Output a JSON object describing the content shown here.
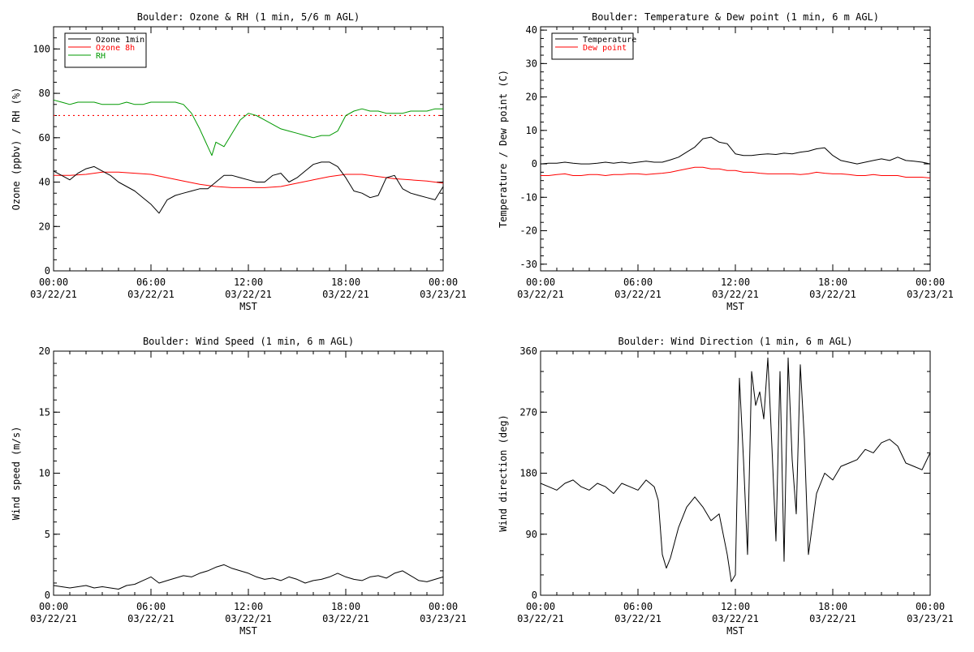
{
  "x_axis": {
    "label": "MST",
    "ticks": [
      {
        "hours": 0,
        "time": "00:00",
        "date": "03/22/21"
      },
      {
        "hours": 6,
        "time": "06:00",
        "date": "03/22/21"
      },
      {
        "hours": 12,
        "time": "12:00",
        "date": "03/22/21"
      },
      {
        "hours": 18,
        "time": "18:00",
        "date": "03/22/21"
      },
      {
        "hours": 24,
        "time": "00:00",
        "date": "03/23/21"
      }
    ],
    "range_hours": [
      0,
      24
    ],
    "minor_step_hours": 1
  },
  "chart_data": [
    {
      "id": "ozone-rh",
      "type": "line",
      "title": "Boulder: Ozone & RH (1 min, 5/6 m AGL)",
      "xlabel": "MST",
      "ylabel": "Ozone (ppbv) / RH (%)",
      "ylim": [
        0,
        110
      ],
      "yticks": [
        0,
        20,
        40,
        60,
        80,
        100
      ],
      "legend": "top-left",
      "series": [
        {
          "name": "Ozone 1min",
          "color": "#000000",
          "x": [
            0,
            0.5,
            1,
            1.5,
            2,
            2.5,
            3,
            3.5,
            4,
            4.5,
            5,
            5.5,
            6,
            6.5,
            7,
            7.5,
            8,
            8.5,
            9,
            9.5,
            10,
            10.5,
            11,
            11.5,
            12,
            12.5,
            13,
            13.5,
            14,
            14.5,
            15,
            15.5,
            16,
            16.5,
            17,
            17.5,
            18,
            18.5,
            19,
            19.5,
            20,
            20.5,
            21,
            21.5,
            22,
            22.5,
            23,
            23.5,
            24
          ],
          "y": [
            45,
            43,
            41,
            44,
            46,
            47,
            45,
            43,
            40,
            38,
            36,
            33,
            30,
            26,
            32,
            34,
            35,
            36,
            37,
            37,
            40,
            43,
            43,
            42,
            41,
            40,
            40,
            43,
            44,
            40,
            42,
            45,
            48,
            49,
            49,
            47,
            42,
            36,
            35,
            33,
            34,
            42,
            43,
            37,
            35,
            34,
            33,
            32,
            38
          ]
        },
        {
          "name": "Ozone 8h",
          "color": "#ff0000",
          "x": [
            0,
            1,
            2,
            3,
            4,
            5,
            6,
            7,
            8,
            9,
            10,
            11,
            12,
            13,
            14,
            15,
            16,
            17,
            18,
            19,
            20,
            21,
            22,
            23,
            24
          ],
          "y": [
            43,
            43,
            43.5,
            44.5,
            44.5,
            44,
            43.5,
            42,
            40.5,
            39,
            38,
            37.5,
            37.5,
            37.5,
            38,
            39.5,
            41,
            42.5,
            43.5,
            43.5,
            42.5,
            41.5,
            41,
            40.5,
            39.5
          ]
        },
        {
          "name": "RH",
          "color": "#009900",
          "x": [
            0,
            0.5,
            1,
            1.5,
            2,
            2.5,
            3,
            3.5,
            4,
            4.5,
            5,
            5.5,
            6,
            6.5,
            7,
            7.5,
            8,
            8,
            8.5,
            9,
            9.5,
            9.75,
            10,
            10.5,
            11,
            11.5,
            12,
            12.5,
            13,
            13.5,
            14,
            14.5,
            15,
            15.5,
            16,
            16.5,
            17,
            17.5,
            18,
            18.5,
            19,
            19.5,
            20,
            20.5,
            21,
            21.5,
            22,
            22.5,
            23,
            23.5,
            24
          ],
          "y": [
            77,
            76,
            75,
            76,
            76,
            76,
            75,
            75,
            75,
            76,
            75,
            75,
            76,
            76,
            76,
            76,
            75,
            75,
            71,
            64,
            56,
            52,
            58,
            56,
            62,
            68,
            71,
            70,
            68,
            66,
            64,
            63,
            62,
            61,
            60,
            61,
            61,
            63,
            70,
            72,
            73,
            72,
            72,
            71,
            71,
            71,
            72,
            72,
            72,
            73,
            73
          ]
        }
      ],
      "reference_lines": [
        {
          "name": "Ozone 8h standard",
          "value": 70,
          "color": "#ff0000",
          "style": "dotted"
        }
      ]
    },
    {
      "id": "temp-dew",
      "type": "line",
      "title": "Boulder: Temperature & Dew point (1 min, 6 m AGL)",
      "xlabel": "MST",
      "ylabel": "Temperature / Dew point (C)",
      "ylim": [
        -32,
        41
      ],
      "yticks": [
        -30,
        -20,
        -10,
        0,
        10,
        20,
        30,
        40
      ],
      "legend": "top-left",
      "series": [
        {
          "name": "Temperature",
          "color": "#000000",
          "x": [
            0,
            0.5,
            1,
            1.5,
            2,
            2.5,
            3,
            3.5,
            4,
            4.5,
            5,
            5.5,
            6,
            6.5,
            7,
            7.5,
            8,
            8.5,
            9,
            9.5,
            10,
            10.5,
            11,
            11.5,
            12,
            12.5,
            13,
            13.5,
            14,
            14.5,
            15,
            15.5,
            16,
            16.5,
            17,
            17.5,
            18,
            18.5,
            19,
            19.5,
            20,
            20.5,
            21,
            21.5,
            22,
            22.5,
            23,
            23.5,
            24
          ],
          "y": [
            0,
            0.2,
            0.2,
            0.5,
            0.2,
            0,
            0,
            0.2,
            0.5,
            0.2,
            0.5,
            0.2,
            0.5,
            0.8,
            0.5,
            0.5,
            1.2,
            2,
            3.5,
            5,
            7.5,
            8,
            6.5,
            6,
            3,
            2.5,
            2.5,
            2.8,
            3,
            2.8,
            3.2,
            3,
            3.5,
            3.8,
            4.5,
            4.8,
            2.5,
            1,
            0.5,
            0,
            0.5,
            1,
            1.5,
            1,
            2,
            1,
            0.8,
            0.5,
            0
          ]
        },
        {
          "name": "Dew point",
          "color": "#ff0000",
          "x": [
            0,
            0.5,
            1,
            1.5,
            2,
            2.5,
            3,
            3.5,
            4,
            4.5,
            5,
            5.5,
            6,
            6.5,
            7,
            7.5,
            8,
            8.5,
            9,
            9.5,
            10,
            10.5,
            11,
            11.5,
            12,
            12.5,
            13,
            13.5,
            14,
            14.5,
            15,
            15.5,
            16,
            16.5,
            17,
            17.5,
            18,
            18.5,
            19,
            19.5,
            20,
            20.5,
            21,
            21.5,
            22,
            22.5,
            23,
            23.5,
            24
          ],
          "y": [
            -3.5,
            -3.5,
            -3.2,
            -3,
            -3.5,
            -3.5,
            -3.2,
            -3.2,
            -3.5,
            -3.2,
            -3.2,
            -3,
            -3,
            -3.2,
            -3,
            -2.8,
            -2.5,
            -2,
            -1.5,
            -1,
            -1,
            -1.5,
            -1.5,
            -2,
            -2,
            -2.5,
            -2.5,
            -2.8,
            -3,
            -3,
            -3,
            -3,
            -3.2,
            -3,
            -2.5,
            -2.8,
            -3,
            -3,
            -3.2,
            -3.5,
            -3.5,
            -3.2,
            -3.5,
            -3.5,
            -3.5,
            -4,
            -4,
            -4,
            -4.2
          ]
        }
      ]
    },
    {
      "id": "wind-speed",
      "type": "line",
      "title": "Boulder: Wind Speed (1 min, 6 m AGL)",
      "xlabel": "MST",
      "ylabel": "Wind speed (m/s)",
      "ylim": [
        0,
        20
      ],
      "yticks": [
        0,
        5,
        10,
        15,
        20
      ],
      "series": [
        {
          "name": "Wind speed",
          "color": "#000000",
          "x": [
            0,
            0.5,
            1,
            1.5,
            2,
            2.5,
            3,
            3.5,
            4,
            4.5,
            5,
            5.5,
            6,
            6.5,
            7,
            7.5,
            8,
            8.5,
            9,
            9.5,
            10,
            10.5,
            11,
            11.5,
            12,
            12.5,
            13,
            13.5,
            14,
            14.5,
            15,
            15.5,
            16,
            16.5,
            17,
            17.5,
            18,
            18.5,
            19,
            19.5,
            20,
            20.5,
            21,
            21.5,
            22,
            22.5,
            23,
            23.5,
            24
          ],
          "y": [
            0.8,
            0.7,
            0.6,
            0.7,
            0.8,
            0.6,
            0.7,
            0.6,
            0.5,
            0.8,
            0.9,
            1.2,
            1.5,
            1,
            1.2,
            1.4,
            1.6,
            1.5,
            1.8,
            2,
            2.3,
            2.5,
            2.2,
            2,
            1.8,
            1.5,
            1.3,
            1.4,
            1.2,
            1.5,
            1.3,
            1.0,
            1.2,
            1.3,
            1.5,
            1.8,
            1.5,
            1.3,
            1.2,
            1.5,
            1.6,
            1.4,
            1.8,
            2,
            1.6,
            1.2,
            1.1,
            1.3,
            1.5
          ]
        }
      ]
    },
    {
      "id": "wind-direction",
      "type": "line",
      "title": "Boulder: Wind Direction (1 min, 6 m AGL)",
      "xlabel": "MST",
      "ylabel": "Wind direction (deg)",
      "ylim": [
        0,
        360
      ],
      "yticks": [
        0,
        90,
        180,
        270,
        360
      ],
      "series": [
        {
          "name": "Wind direction",
          "color": "#000000",
          "x": [
            0,
            0.5,
            1,
            1.5,
            2,
            2.5,
            3,
            3.5,
            4,
            4.5,
            5,
            5.5,
            6,
            6.5,
            7,
            7.25,
            7.5,
            7.75,
            8,
            8.5,
            9,
            9.5,
            10,
            10.5,
            11,
            11.5,
            11.75,
            12,
            12.25,
            12.5,
            12.75,
            13,
            13.25,
            13.5,
            13.75,
            14,
            14.25,
            14.5,
            14.75,
            15,
            15.25,
            15.5,
            15.75,
            16,
            16.25,
            16.5,
            17,
            17.5,
            18,
            18.5,
            19,
            19.5,
            20,
            20.5,
            21,
            21.5,
            22,
            22.5,
            23,
            23.5,
            24
          ],
          "y": [
            165,
            160,
            155,
            165,
            170,
            160,
            155,
            165,
            160,
            150,
            165,
            160,
            155,
            170,
            160,
            140,
            60,
            40,
            55,
            100,
            130,
            145,
            130,
            110,
            120,
            60,
            20,
            30,
            320,
            200,
            60,
            330,
            280,
            300,
            260,
            350,
            220,
            80,
            330,
            50,
            350,
            200,
            120,
            340,
            230,
            60,
            150,
            180,
            170,
            190,
            195,
            200,
            215,
            210,
            225,
            230,
            220,
            195,
            190,
            185,
            210
          ]
        }
      ]
    }
  ]
}
